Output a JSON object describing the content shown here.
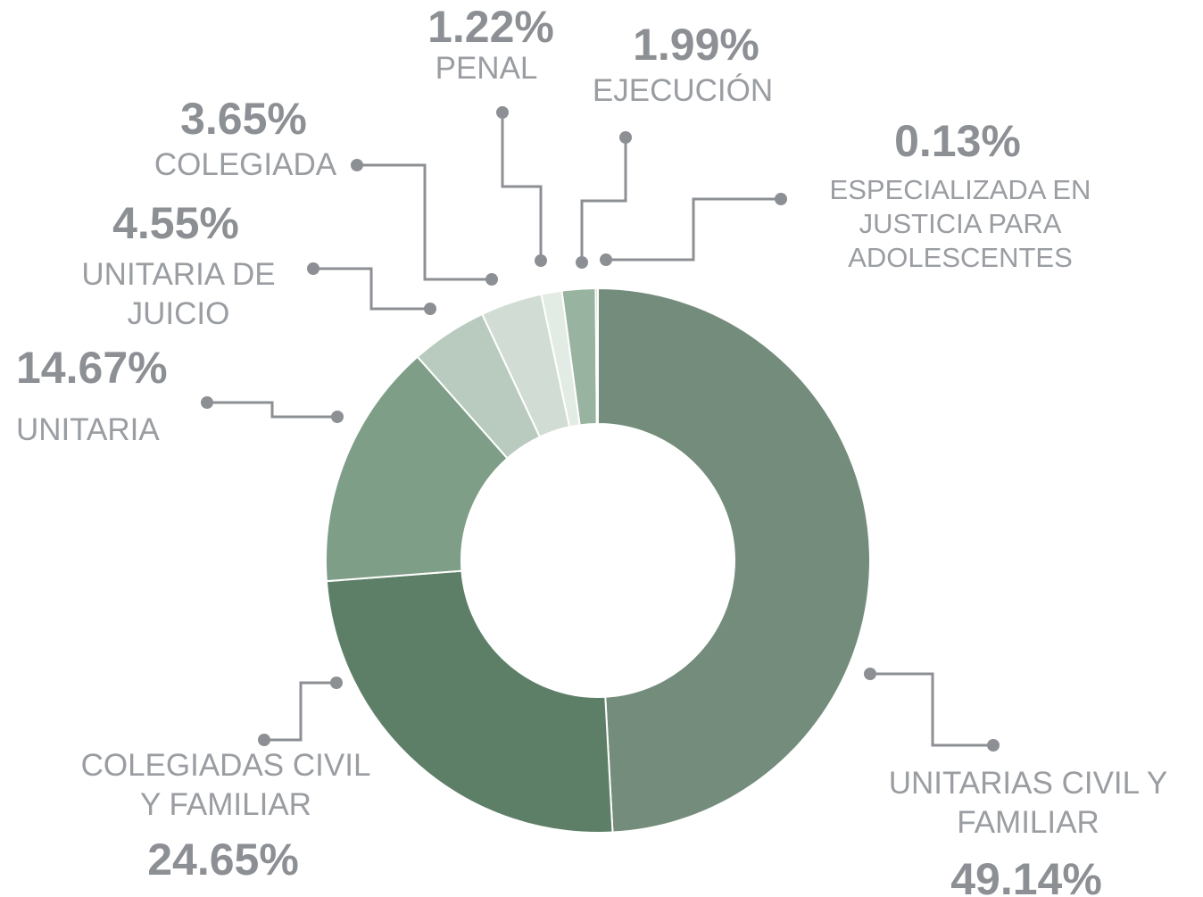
{
  "chart_data": {
    "type": "donut",
    "categories": [
      "UNITARIAS CIVIL Y FAMILIAR",
      "COLEGIADAS CIVIL Y FAMILIAR",
      "UNITARIA",
      "UNITARIA DE JUICIO",
      "COLEGIADA",
      "PENAL",
      "EJECUCIÓN",
      "ESPECIALIZADA EN JUSTICIA PARA ADOLESCENTES"
    ],
    "values": [
      49.14,
      24.65,
      14.67,
      4.55,
      3.65,
      1.22,
      1.99,
      0.13
    ],
    "value_labels": [
      "49.14%",
      "24.65%",
      "14.67%",
      "4.55%",
      "3.65%",
      "1.22%",
      "1.99%",
      "0.13%"
    ],
    "colors": [
      "#748c7b",
      "#5e7f67",
      "#7e9e87",
      "#b9cbbe",
      "#d1ddd4",
      "#e3ebe5",
      "#98b39f",
      "#b0c4b5"
    ]
  }
}
